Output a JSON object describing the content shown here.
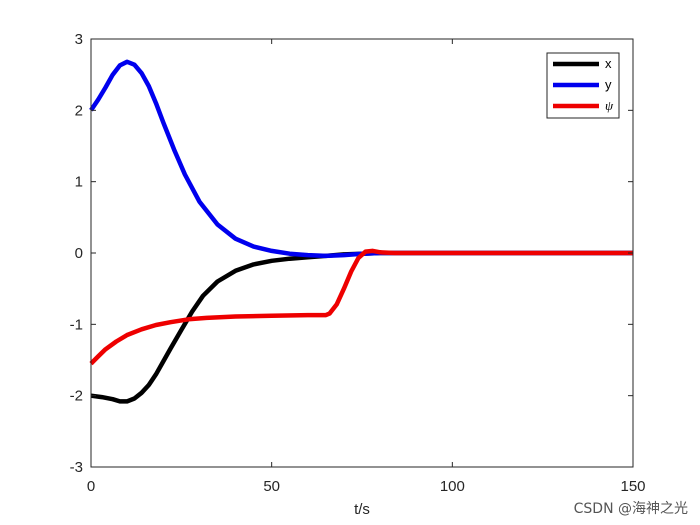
{
  "chart_data": {
    "type": "line",
    "title": "",
    "xlabel": "t/s",
    "ylabel": "",
    "xlim": [
      0,
      150
    ],
    "ylim": [
      -3,
      3
    ],
    "xticks": [
      0,
      50,
      100,
      150
    ],
    "xtick_labels": [
      "0",
      "50",
      "100",
      "150"
    ],
    "yticks": [
      -3,
      -2,
      -1,
      0,
      1,
      2,
      3
    ],
    "ytick_labels": [
      "-3",
      "-2",
      "-1",
      "0",
      "1",
      "2",
      "3"
    ],
    "grid": false,
    "legend_position": "top-right",
    "series": [
      {
        "name": "x",
        "color": "#000000",
        "x": [
          0,
          3,
          6,
          8,
          10,
          12,
          14,
          16,
          18,
          20,
          22,
          25,
          28,
          31,
          35,
          40,
          45,
          50,
          55,
          60,
          65,
          70,
          75,
          80,
          100,
          150
        ],
        "y": [
          -2.0,
          -2.02,
          -2.05,
          -2.08,
          -2.08,
          -2.04,
          -1.96,
          -1.85,
          -1.7,
          -1.52,
          -1.34,
          -1.08,
          -0.82,
          -0.6,
          -0.4,
          -0.25,
          -0.16,
          -0.11,
          -0.08,
          -0.06,
          -0.04,
          -0.02,
          -0.01,
          0.0,
          0.0,
          0.0
        ]
      },
      {
        "name": "y",
        "color": "#0000ee",
        "x": [
          0,
          2,
          4,
          6,
          8,
          10,
          12,
          14,
          16,
          18,
          20,
          23,
          26,
          30,
          35,
          40,
          45,
          50,
          55,
          60,
          65,
          70,
          75,
          80,
          100,
          150
        ],
        "y": [
          2.0,
          2.15,
          2.32,
          2.5,
          2.63,
          2.68,
          2.64,
          2.52,
          2.34,
          2.1,
          1.83,
          1.45,
          1.1,
          0.72,
          0.4,
          0.2,
          0.09,
          0.03,
          -0.01,
          -0.03,
          -0.04,
          -0.03,
          -0.01,
          0.0,
          0.0,
          0.0
        ]
      },
      {
        "name": "ψ",
        "color": "#ee0000",
        "x": [
          0,
          2,
          4,
          7,
          10,
          14,
          18,
          22,
          27,
          32,
          40,
          50,
          60,
          65,
          66,
          68,
          70,
          72,
          74,
          76,
          78,
          80,
          84,
          100,
          150
        ],
        "y": [
          -1.55,
          -1.45,
          -1.35,
          -1.24,
          -1.15,
          -1.07,
          -1.01,
          -0.97,
          -0.93,
          -0.91,
          -0.89,
          -0.88,
          -0.87,
          -0.87,
          -0.85,
          -0.72,
          -0.5,
          -0.26,
          -0.07,
          0.02,
          0.03,
          0.01,
          0.0,
          0.0,
          0.0
        ]
      }
    ]
  },
  "watermark": "CSDN @海神之光"
}
